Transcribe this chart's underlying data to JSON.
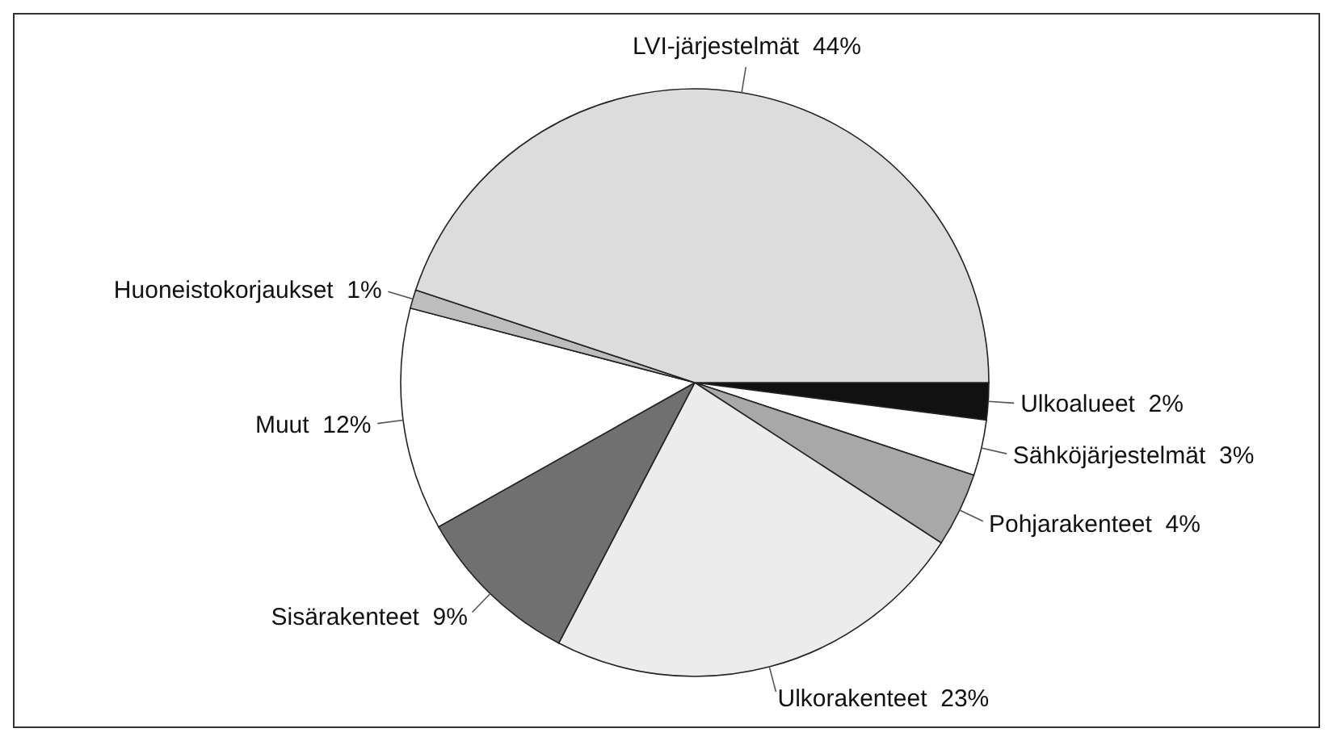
{
  "chart_data": {
    "type": "pie",
    "categories": [
      "Ulkoalueet",
      "Sähköjärjestelmät",
      "Pohjarakenteet",
      "Ulkorakenteet",
      "Sisärakenteet",
      "Muut",
      "Huoneistokorjaukset",
      "LVI-järjestelmät"
    ],
    "values": [
      2,
      3,
      4,
      23,
      9,
      12,
      1,
      44
    ],
    "value_labels": [
      "2%",
      "3%",
      "4%",
      "23%",
      "9%",
      "12%",
      "1%",
      "44%"
    ],
    "colors": [
      "#111111",
      "#ffffff",
      "#a8a8a8",
      "#ececec",
      "#707070",
      "#ffffff",
      "#bdbdbd",
      "#dcdcdc"
    ]
  }
}
